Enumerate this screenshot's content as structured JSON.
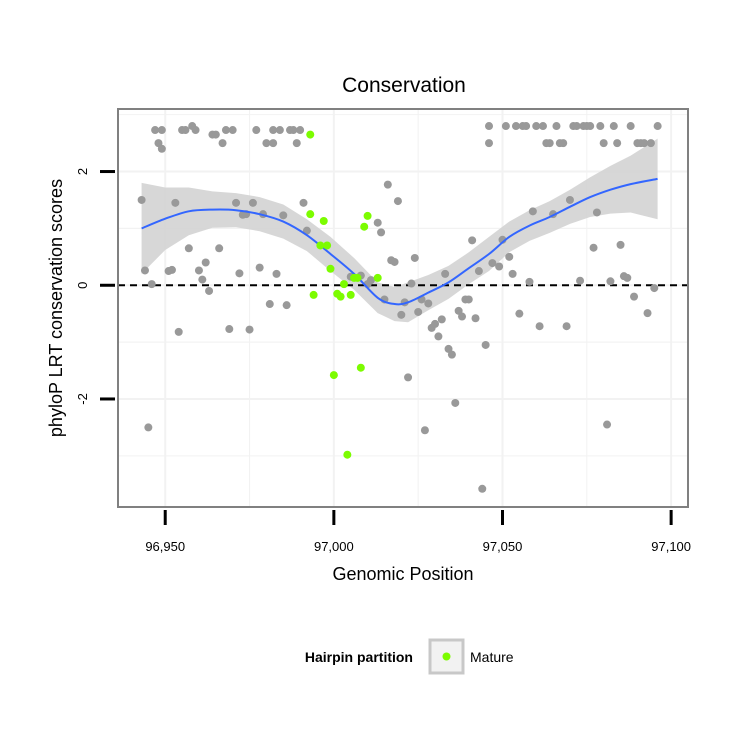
{
  "chart_data": {
    "type": "scatter",
    "title": "Conservation",
    "xlabel": "Genomic Position",
    "ylabel": "phyloP LRT conservation scores",
    "xlim": [
      96936,
      97105
    ],
    "ylim": [
      -3.9,
      3.1
    ],
    "x_ticks": [
      96950,
      97000,
      97050,
      97100
    ],
    "x_tick_labels": [
      "96,950",
      "97,000",
      "97,050",
      "97,100"
    ],
    "y_ticks": [
      -2,
      0,
      2
    ],
    "y_tick_labels": [
      "-2",
      "0",
      "2"
    ],
    "reference_line": {
      "y": 0,
      "style": "dashed"
    },
    "legend": {
      "title": "Hairpin partition",
      "position": "bottom",
      "entries": [
        "Mature"
      ]
    },
    "colors": {
      "background_points": "#999999",
      "mature_points": "#7cfc00",
      "smooth_line": "#3366ff",
      "confidence_band": "#d3d3d3",
      "panel_border": "#808080"
    },
    "series": [
      {
        "role": "background",
        "points": [
          [
            96943,
            1.5
          ],
          [
            96944,
            0.26
          ],
          [
            96945,
            -2.5
          ],
          [
            96946,
            0.02
          ],
          [
            96947,
            2.73
          ],
          [
            96948,
            2.5
          ],
          [
            96949,
            2.4
          ],
          [
            96949,
            2.73
          ],
          [
            96951,
            0.25
          ],
          [
            96952,
            0.27
          ],
          [
            96953,
            1.45
          ],
          [
            96954,
            -0.82
          ],
          [
            96955,
            2.73
          ],
          [
            96956,
            2.73
          ],
          [
            96957,
            0.65
          ],
          [
            96958,
            2.8
          ],
          [
            96959,
            2.73
          ],
          [
            96960,
            0.26
          ],
          [
            96961,
            0.1
          ],
          [
            96962,
            0.4
          ],
          [
            96963,
            -0.1
          ],
          [
            96964,
            2.65
          ],
          [
            96965,
            2.65
          ],
          [
            96966,
            0.65
          ],
          [
            96967,
            2.5
          ],
          [
            96968,
            2.73
          ],
          [
            96969,
            -0.77
          ],
          [
            96970,
            2.73
          ],
          [
            96971,
            1.45
          ],
          [
            96972,
            0.21
          ],
          [
            96973,
            1.24
          ],
          [
            96974,
            1.25
          ],
          [
            96975,
            -0.78
          ],
          [
            96976,
            1.45
          ],
          [
            96977,
            2.73
          ],
          [
            96978,
            0.31
          ],
          [
            96979,
            1.25
          ],
          [
            96980,
            2.5
          ],
          [
            96981,
            -0.33
          ],
          [
            96982,
            2.5
          ],
          [
            96982,
            2.73
          ],
          [
            96983,
            0.2
          ],
          [
            96984,
            2.73
          ],
          [
            96985,
            1.23
          ],
          [
            96986,
            -0.35
          ],
          [
            96987,
            2.73
          ],
          [
            96988,
            2.73
          ],
          [
            96989,
            2.5
          ],
          [
            96990,
            2.73
          ],
          [
            96991,
            1.45
          ],
          [
            96992,
            0.96
          ],
          [
            97005,
            0.15
          ],
          [
            97008,
            0.17
          ],
          [
            97010,
            0.02
          ],
          [
            97011,
            0.09
          ],
          [
            97013,
            1.1
          ],
          [
            97014,
            0.93
          ],
          [
            97015,
            -0.25
          ],
          [
            97016,
            1.77
          ],
          [
            97017,
            0.44
          ],
          [
            97018,
            0.41
          ],
          [
            97019,
            1.48
          ],
          [
            97020,
            -0.52
          ],
          [
            97021,
            -0.3
          ],
          [
            97022,
            -1.62
          ],
          [
            97023,
            0.03
          ],
          [
            97024,
            0.48
          ],
          [
            97025,
            -0.47
          ],
          [
            97026,
            -0.25
          ],
          [
            97027,
            -2.55
          ],
          [
            97028,
            -0.32
          ],
          [
            97029,
            -0.75
          ],
          [
            97030,
            -0.68
          ],
          [
            97031,
            -0.9
          ],
          [
            97032,
            -0.6
          ],
          [
            97033,
            0.2
          ],
          [
            97034,
            -1.12
          ],
          [
            97035,
            -1.22
          ],
          [
            97036,
            -2.07
          ],
          [
            97037,
            -0.45
          ],
          [
            97038,
            -0.55
          ],
          [
            97039,
            -0.25
          ],
          [
            97040,
            -0.25
          ],
          [
            97041,
            0.79
          ],
          [
            97042,
            -0.58
          ],
          [
            97043,
            0.25
          ],
          [
            97044,
            -3.58
          ],
          [
            97045,
            -1.05
          ],
          [
            97046,
            2.5
          ],
          [
            97046,
            2.8
          ],
          [
            97047,
            0.39
          ],
          [
            97049,
            0.33
          ],
          [
            97050,
            0.8
          ],
          [
            97051,
            2.8
          ],
          [
            97052,
            0.5
          ],
          [
            97053,
            0.2
          ],
          [
            97054,
            2.8
          ],
          [
            97055,
            -0.5
          ],
          [
            97056,
            2.8
          ],
          [
            97057,
            2.8
          ],
          [
            97058,
            0.06
          ],
          [
            97059,
            1.3
          ],
          [
            97060,
            2.8
          ],
          [
            97061,
            -0.72
          ],
          [
            97062,
            2.8
          ],
          [
            97063,
            2.5
          ],
          [
            97064,
            2.5
          ],
          [
            97065,
            1.25
          ],
          [
            97066,
            2.8
          ],
          [
            97067,
            2.5
          ],
          [
            97068,
            2.5
          ],
          [
            97069,
            -0.72
          ],
          [
            97070,
            1.5
          ],
          [
            97071,
            2.8
          ],
          [
            97072,
            2.8
          ],
          [
            97073,
            0.08
          ],
          [
            97074,
            2.8
          ],
          [
            97075,
            2.8
          ],
          [
            97076,
            2.8
          ],
          [
            97077,
            0.66
          ],
          [
            97078,
            1.28
          ],
          [
            97079,
            2.8
          ],
          [
            97080,
            2.5
          ],
          [
            97081,
            -2.45
          ],
          [
            97082,
            0.07
          ],
          [
            97083,
            2.8
          ],
          [
            97084,
            2.5
          ],
          [
            97085,
            0.71
          ],
          [
            97086,
            0.16
          ],
          [
            97087,
            0.13
          ],
          [
            97088,
            2.8
          ],
          [
            97089,
            -0.2
          ],
          [
            97090,
            2.5
          ],
          [
            97091,
            2.5
          ],
          [
            97092,
            2.5
          ],
          [
            97093,
            -0.49
          ],
          [
            97094,
            2.5
          ],
          [
            97095,
            -0.05
          ],
          [
            97096,
            2.8
          ]
        ]
      },
      {
        "name": "Mature",
        "points": [
          [
            96993,
            2.65
          ],
          [
            96993,
            1.25
          ],
          [
            96994,
            -0.17
          ],
          [
            96996,
            0.7
          ],
          [
            96997,
            1.13
          ],
          [
            96998,
            0.7
          ],
          [
            96999,
            0.29
          ],
          [
            97000,
            -1.58
          ],
          [
            97001,
            -0.15
          ],
          [
            97002,
            -0.2
          ],
          [
            97003,
            0.02
          ],
          [
            97004,
            -2.98
          ],
          [
            97005,
            -0.17
          ],
          [
            97006,
            0.13
          ],
          [
            97007,
            0.13
          ],
          [
            97008,
            -1.45
          ],
          [
            97009,
            1.03
          ],
          [
            97010,
            1.22
          ],
          [
            97013,
            0.13
          ]
        ]
      }
    ],
    "smooth": {
      "x": [
        96943,
        96950,
        96957,
        96964,
        96971,
        96978,
        96985,
        96992,
        96999,
        97006,
        97013,
        97018,
        97022,
        97028,
        97034,
        97040,
        97046,
        97052,
        97058,
        97064,
        97070,
        97076,
        97082,
        97088,
        97096
      ],
      "y": [
        1.0,
        1.17,
        1.3,
        1.33,
        1.32,
        1.25,
        1.12,
        0.88,
        0.55,
        0.2,
        -0.22,
        -0.33,
        -0.3,
        -0.13,
        0.05,
        0.3,
        0.55,
        0.85,
        1.05,
        1.2,
        1.38,
        1.55,
        1.68,
        1.78,
        1.87
      ],
      "upper": [
        1.8,
        1.72,
        1.72,
        1.65,
        1.62,
        1.55,
        1.42,
        1.16,
        0.85,
        0.48,
        0.05,
        -0.03,
        0.05,
        0.18,
        0.34,
        0.58,
        0.85,
        1.12,
        1.32,
        1.48,
        1.68,
        1.9,
        2.1,
        2.28,
        2.58
      ],
      "lower": [
        0.2,
        0.62,
        0.88,
        1.01,
        1.02,
        0.95,
        0.82,
        0.6,
        0.25,
        -0.08,
        -0.49,
        -0.63,
        -0.65,
        -0.44,
        -0.24,
        0.02,
        0.25,
        0.58,
        0.78,
        0.92,
        1.08,
        1.2,
        1.26,
        1.28,
        1.16
      ]
    }
  }
}
